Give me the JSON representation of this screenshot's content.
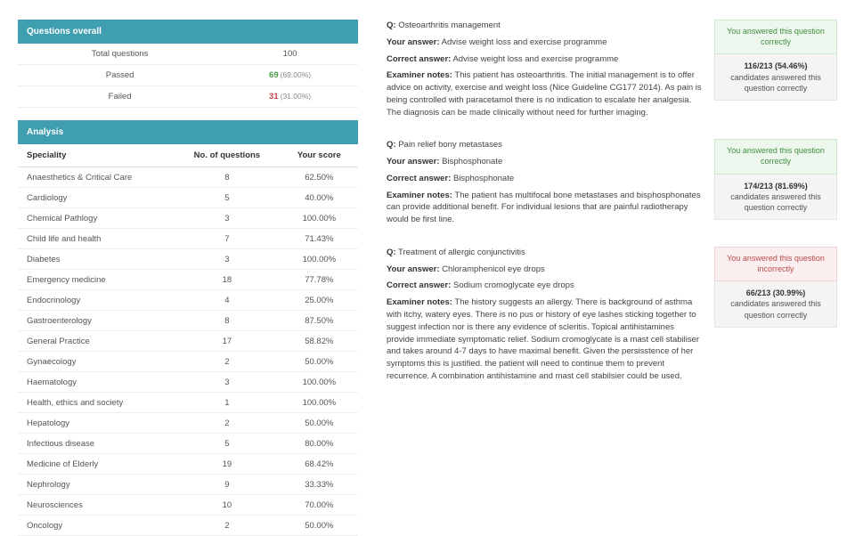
{
  "colors": {
    "header_bg": "#3f9eb0",
    "pass": "#4a9e4a",
    "fail": "#c94a4a",
    "correct_bg": "#eef7ee",
    "incorrect_bg": "#fbeeee"
  },
  "overview": {
    "title": "Questions overall",
    "rows": {
      "total_label": "Total questions",
      "total_value": "100",
      "passed_label": "Passed",
      "passed_value": "69",
      "passed_pct": "(69.00%)",
      "failed_label": "Failed",
      "failed_value": "31",
      "failed_pct": "(31.00%)"
    }
  },
  "analysis": {
    "title": "Analysis",
    "headers": {
      "speciality": "Speciality",
      "num": "No. of questions",
      "score": "Your score"
    },
    "rows": [
      {
        "speciality": "Anaesthetics & Critical Care",
        "num": "8",
        "score": "62.50%"
      },
      {
        "speciality": "Cardiology",
        "num": "5",
        "score": "40.00%"
      },
      {
        "speciality": "Chemical Pathlogy",
        "num": "3",
        "score": "100.00%"
      },
      {
        "speciality": "Child life and health",
        "num": "7",
        "score": "71.43%"
      },
      {
        "speciality": "Diabetes",
        "num": "3",
        "score": "100.00%"
      },
      {
        "speciality": "Emergency medicine",
        "num": "18",
        "score": "77.78%"
      },
      {
        "speciality": "Endocrinology",
        "num": "4",
        "score": "25.00%"
      },
      {
        "speciality": "Gastroenterology",
        "num": "8",
        "score": "87.50%"
      },
      {
        "speciality": "General Practice",
        "num": "17",
        "score": "58.82%"
      },
      {
        "speciality": "Gynaecology",
        "num": "2",
        "score": "50.00%"
      },
      {
        "speciality": "Haematology",
        "num": "3",
        "score": "100.00%"
      },
      {
        "speciality": "Health, ethics and society",
        "num": "1",
        "score": "100.00%"
      },
      {
        "speciality": "Hepatology",
        "num": "2",
        "score": "50.00%"
      },
      {
        "speciality": "Infectious disease",
        "num": "5",
        "score": "80.00%"
      },
      {
        "speciality": "Medicine of Elderly",
        "num": "19",
        "score": "68.42%"
      },
      {
        "speciality": "Nephrology",
        "num": "9",
        "score": "33.33%"
      },
      {
        "speciality": "Neurosciences",
        "num": "10",
        "score": "70.00%"
      },
      {
        "speciality": "Oncology",
        "num": "2",
        "score": "50.00%"
      }
    ]
  },
  "labels": {
    "q": "Q:",
    "your_answer": "Your answer:",
    "correct_answer": "Correct answer:",
    "examiner_notes": "Examiner notes:",
    "correct_status": "You answered this question correctly",
    "incorrect_status": "You answered this question incorrectly",
    "stats_suffix": "candidates answered this question correctly"
  },
  "questions": [
    {
      "title": "Osteoarthritis management",
      "your_answer": "Advise weight loss and exercise programme",
      "correct_answer": "Advise weight loss and exercise programme",
      "notes": "This patient has osteoarthritis. The initial management is to offer advice on activity, exercise and weight loss (Nice Guideline CG177 2014). As pain is being controlled with paracetamol there is no indication to escalate her analgesia. The diagnosis can be made clinically without need for further imaging.",
      "correct": true,
      "stats_bold": "116/213 (54.46%)"
    },
    {
      "title": "Pain relief bony metastases",
      "your_answer": "Bisphosphonate",
      "correct_answer": "Bisphosphonate",
      "notes": "The patient has multifocal bone metastases and bisphosphonates can provide additional benefit. For individual lesions that are painful radiotherapy would be first line.",
      "correct": true,
      "stats_bold": "174/213 (81.69%)"
    },
    {
      "title": "Treatment of allergic conjunctivitis",
      "your_answer": "Chloramphenicol eye drops",
      "correct_answer": "Sodium cromoglycate eye drops",
      "notes": "The history suggests an allergy. There is background of asthma with itchy, watery eyes. There is no pus or history of eye lashes sticking together to suggest infection nor is there any evidence of scleritis. Topical antihistamines provide immediate symptomatic relief. Sodium cromoglycate is a mast cell stabiliser and takes around 4-7 days to have maximal benefit. Given the persisstence of her symptoms this is justified. the patient will need to continue them to prevent recurrence. A combination antihistamine and mast cell stabilsier could be used.",
      "correct": false,
      "stats_bold": "66/213 (30.99%)"
    }
  ]
}
